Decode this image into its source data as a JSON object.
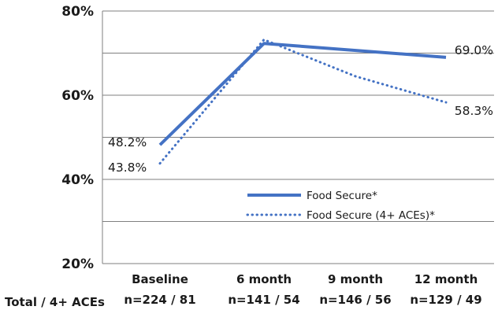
{
  "chart_data": {
    "type": "line",
    "categories": [
      "Baseline",
      "6 month",
      "9 month",
      "12 month"
    ],
    "category_sublabels": [
      "n=224 / 81",
      "n=141 / 54",
      "n=146 / 56",
      "n=129 / 49"
    ],
    "row_label": "Total / 4+ ACEs",
    "series": [
      {
        "name": "Food Secure*",
        "style": "solid",
        "color": "#4472c4",
        "values": [
          48.2,
          72.3,
          null,
          69.0
        ],
        "data_labels": [
          "48.2%",
          "",
          "",
          "69.0%"
        ]
      },
      {
        "name": "Food Secure (4+ ACEs)*",
        "style": "dotted",
        "color": "#4472c4",
        "values": [
          43.8,
          73.2,
          64.5,
          58.3
        ],
        "data_labels": [
          "43.8%",
          "",
          "",
          "58.3%"
        ]
      }
    ],
    "y_ticks": [
      "20%",
      "40%",
      "60%",
      "80%"
    ],
    "ylim": [
      20,
      80
    ],
    "grid": true,
    "legend_position": "lower-right"
  }
}
